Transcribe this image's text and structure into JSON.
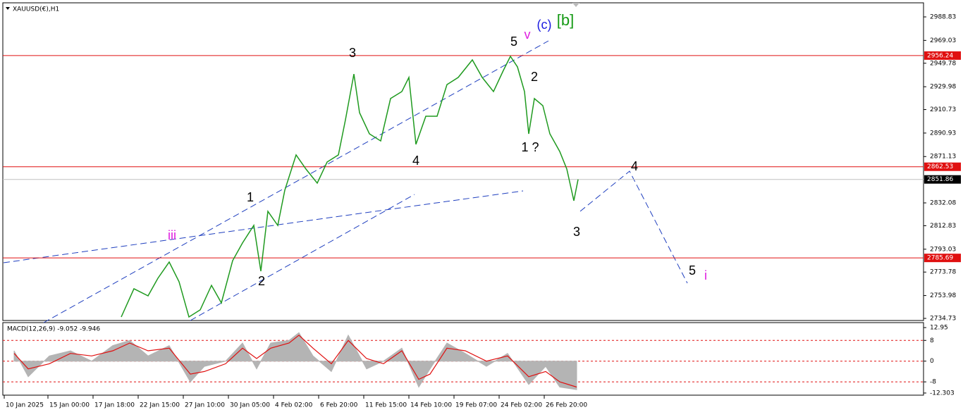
{
  "chart_data": [
    {
      "type": "line",
      "title": "XAUUSD(€),H1",
      "x": [
        84,
        93,
        103,
        110,
        118,
        125,
        132,
        140,
        148,
        155,
        163,
        170,
        178,
        183,
        188,
        195,
        200,
        208,
        215,
        223,
        230,
        238,
        243,
        249,
        253,
        260,
        268,
        275,
        283,
        288,
        293,
        300,
        308,
        315,
        323,
        333,
        340,
        348,
        355,
        360,
        365,
        370,
        373,
        377,
        383,
        388,
        395,
        400,
        405,
        408
      ],
      "values": [
        2735.9,
        2759.7,
        2753.7,
        2768.6,
        2782.2,
        2765.6,
        2735.9,
        2741.9,
        2762.6,
        2747.8,
        2783.4,
        2798.3,
        2813.1,
        2774.5,
        2825.0,
        2813.1,
        2842.8,
        2872.5,
        2860.6,
        2848.7,
        2866.5,
        2872.5,
        2902.1,
        2940.7,
        2908.1,
        2890.3,
        2884.3,
        2920.0,
        2925.9,
        2937.8,
        2881.4,
        2905.1,
        2905.1,
        2931.8,
        2937.8,
        2952.6,
        2937.8,
        2925.9,
        2943.7,
        2955.6,
        2946.7,
        2925.9,
        2890.3,
        2920.0,
        2914.0,
        2890.3,
        2875.4,
        2860.6,
        2833.9,
        2851.86
      ],
      "color": "#1f9a1f",
      "xlim": [
        0,
        653
      ],
      "xticks": [
        {
          "value": 1,
          "label": "10 Jan 2025"
        },
        {
          "value": 32,
          "label": "15 Jan 00:00"
        },
        {
          "value": 64,
          "label": "17 Jan 18:00"
        },
        {
          "value": 96,
          "label": "22 Jan 15:00"
        },
        {
          "value": 128,
          "label": "27 Jan 10:00"
        },
        {
          "value": 160,
          "label": "30 Jan 05:00"
        },
        {
          "value": 192,
          "label": "4 Feb 02:00"
        },
        {
          "value": 224,
          "label": "6 Feb 20:00"
        },
        {
          "value": 256,
          "label": "11 Feb 15:00"
        },
        {
          "value": 288,
          "label": "14 Feb 10:00"
        },
        {
          "value": 320,
          "label": "19 Feb 07:00"
        },
        {
          "value": 352,
          "label": "24 Feb 02:00"
        },
        {
          "value": 384,
          "label": "26 Feb 20:00"
        }
      ],
      "ylim": [
        2732.95,
        3000.7
      ],
      "yticks": [
        2988.83,
        2969.03,
        2949.78,
        2929.98,
        2910.73,
        2890.93,
        2871.13,
        2832.08,
        2812.83,
        2793.03,
        2773.78,
        2753.98,
        2734.73
      ],
      "levels": [
        {
          "value": 2956.24,
          "color": "#e01010"
        },
        {
          "value": 2862.53,
          "color": "#e01010"
        },
        {
          "value": 2785.69,
          "color": "#e01010"
        }
      ],
      "current_price": 2851.86,
      "annotations": [
        {
          "text": "3",
          "color": "#000000"
        },
        {
          "text": "5",
          "color": "#000000"
        },
        {
          "text": "v",
          "color": "#e020e0"
        },
        {
          "text": "(c)",
          "color": "#1a1ae0"
        },
        {
          "text": "[b]",
          "color": "#159a15"
        },
        {
          "text": "2",
          "color": "#000000"
        },
        {
          "text": "1 ?",
          "color": "#000000"
        },
        {
          "text": "4",
          "color": "#000000"
        },
        {
          "text": "1",
          "color": "#000000"
        },
        {
          "text": "iii",
          "color": "#e020e0"
        },
        {
          "text": "2",
          "color": "#000000"
        },
        {
          "text": "3",
          "color": "#000000"
        },
        {
          "text": "4",
          "color": "#000000"
        },
        {
          "text": "5",
          "color": "#000000"
        },
        {
          "text": "i",
          "color": "#e020e0"
        }
      ]
    },
    {
      "type": "macd",
      "title": "MACD(12,26,9) -9.052 -9.946",
      "x": [
        8,
        18,
        33,
        48,
        63,
        78,
        90,
        103,
        118,
        133,
        143,
        158,
        170,
        180,
        190,
        203,
        210,
        220,
        233,
        245,
        258,
        270,
        283,
        295,
        303,
        315,
        328,
        343,
        358,
        373,
        385,
        395,
        407
      ],
      "series": [
        {
          "color": "#b4b4b4",
          "values": [
            4,
            -6,
            2,
            4,
            0,
            6,
            8,
            2,
            6,
            -8,
            -2,
            0,
            7,
            -3,
            7,
            8,
            11,
            2,
            -4,
            10,
            -3,
            0,
            5,
            -10,
            -3,
            7,
            3,
            -2,
            3,
            -9,
            -2,
            -10,
            -11
          ]
        },
        {
          "color": "#e01010",
          "values": [
            3,
            -3,
            -1,
            3,
            2,
            4,
            7,
            4,
            5,
            -5,
            -4,
            -1,
            5,
            1,
            5,
            7,
            10,
            5,
            -1,
            8,
            1,
            -1,
            4,
            -7,
            -5,
            5,
            4,
            0,
            2,
            -6,
            -4,
            -8,
            -10
          ]
        }
      ],
      "xlim": [
        0,
        653
      ],
      "ylim": [
        -13.13,
        14.87
      ],
      "yticks": [
        12.95,
        8,
        0,
        -8,
        -12.303
      ],
      "levels": [
        8,
        -8
      ]
    }
  ]
}
